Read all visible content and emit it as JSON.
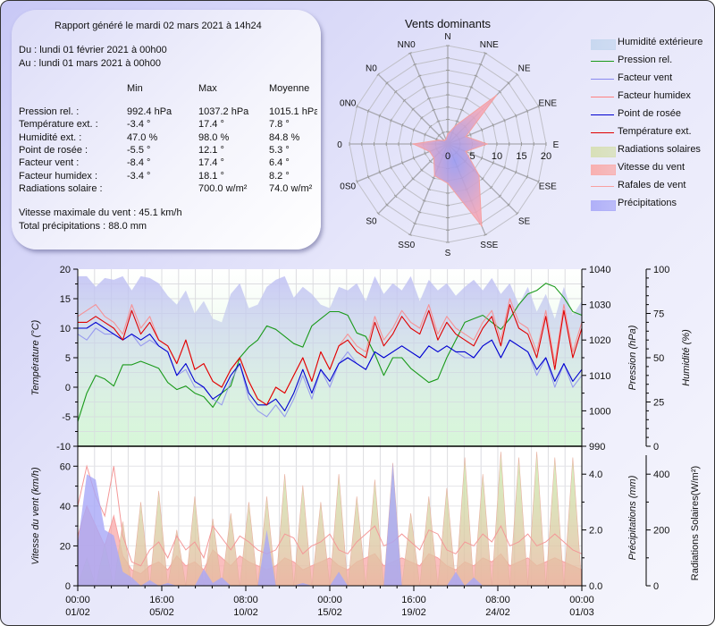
{
  "summary": {
    "title": "Rapport généré le mardi 02 mars 2021 à 14h24",
    "from": "Du : lundi 01 février 2021 à 00h00",
    "to": "Au : lundi 01 mars 2021 à 00h00",
    "columns": [
      "Min",
      "Max",
      "Moyenne"
    ],
    "rows": [
      {
        "label": "Pression rel. :",
        "min": "992.4 hPa",
        "max": "1037.2 hPa",
        "avg": "1015.1 hPa"
      },
      {
        "label": "Température ext. :",
        "min": "-3.4 °",
        "max": "17.4 °",
        "avg": "7.8 °"
      },
      {
        "label": "Humidité ext. :",
        "min": "47.0 %",
        "max": "98.0 %",
        "avg": "84.8 %"
      },
      {
        "label": "Point de rosée :",
        "min": "-5.5 °",
        "max": "12.1 °",
        "avg": "5.3 °"
      },
      {
        "label": "Facteur vent :",
        "min": "-8.4 °",
        "max": "17.4 °",
        "avg": "6.4 °"
      },
      {
        "label": "Facteur humidex :",
        "min": "-3.4 °",
        "max": "18.1 °",
        "avg": "8.2 °"
      },
      {
        "label": "Radiations solaire :",
        "min": "",
        "max": "700.0 w/m²",
        "avg": "74.0 w/m²"
      }
    ],
    "max_wind": "Vitesse maximale du vent : 45.1 km/h",
    "total_rain": "Total précipitations : 88.0 mm"
  },
  "legend": [
    {
      "label": "Humidité extérieure",
      "kind": "area",
      "color": "#c8d8f0"
    },
    {
      "label": "Pression rel.",
      "kind": "line",
      "color": "#1a9a1a"
    },
    {
      "label": "Facteur vent",
      "kind": "line",
      "color": "#8888f0"
    },
    {
      "label": "Facteur humidex",
      "kind": "line",
      "color": "#ff8080"
    },
    {
      "label": "Point de rosée",
      "kind": "line",
      "color": "#0000d0"
    },
    {
      "label": "Température ext.",
      "kind": "line",
      "color": "#e00000"
    },
    {
      "label": "Radiations solaires",
      "kind": "area",
      "color": "#d8e0b8"
    },
    {
      "label": "Vitesse du vent",
      "kind": "area",
      "color": "#f8b0b0"
    },
    {
      "label": "Rafales de vent",
      "kind": "line",
      "color": "#f8a0a0"
    },
    {
      "label": "Précipitations",
      "kind": "area",
      "color": "#b0b0f8"
    }
  ],
  "chart_data": [
    {
      "type": "radar",
      "title": "Vents dominants",
      "directions": [
        "N",
        "NNE",
        "NE",
        "ENE",
        "E",
        "ESE",
        "SE",
        "SSE",
        "S",
        "SS0",
        "S0",
        "0S0",
        "0",
        "0N0",
        "N0",
        "NN0"
      ],
      "values": [
        2,
        4,
        14,
        4,
        8,
        4,
        9,
        18,
        8,
        7,
        4,
        4,
        7,
        2,
        1,
        1
      ],
      "rlim": [
        0,
        20
      ],
      "rticks": [
        "0",
        "5",
        "10",
        "15",
        "20"
      ]
    },
    {
      "type": "line",
      "title": "",
      "xlabel": "",
      "xticks": [
        [
          "00:00",
          "01/02"
        ],
        [
          "16:00",
          "05/02"
        ],
        [
          "08:00",
          "10/02"
        ],
        [
          "00:00",
          "15/02"
        ],
        [
          "16:00",
          "19/02"
        ],
        [
          "08:00",
          "24/02"
        ],
        [
          "00:00",
          "01/03"
        ]
      ],
      "x_hours": [
        0,
        12,
        24,
        36,
        48,
        60,
        72,
        84,
        96,
        108,
        120,
        132,
        144,
        156,
        168,
        180,
        192,
        204,
        216,
        228,
        240,
        252,
        264,
        276,
        288,
        300,
        312,
        324,
        336,
        348,
        360,
        372,
        384,
        396,
        408,
        420,
        432,
        444,
        456,
        468,
        480,
        492,
        504,
        516,
        528,
        540,
        552,
        564,
        576,
        588,
        600,
        612,
        624,
        636,
        648,
        660,
        672
      ],
      "axes": {
        "temperature": {
          "label": "Température (°C)",
          "lim": [
            -10,
            20
          ],
          "ticks": [
            "20",
            "15",
            "10",
            "5",
            "0",
            "-5",
            "-10"
          ]
        },
        "pressure": {
          "label": "Pression (hPa)",
          "lim": [
            990,
            1040
          ],
          "ticks": [
            "1040",
            "1030",
            "1020",
            "1010",
            "1000",
            "990"
          ]
        },
        "humidity": {
          "label": "Humidité (%)",
          "lim": [
            0,
            100
          ],
          "ticks": [
            "100",
            "75",
            "50",
            "25",
            "0"
          ]
        }
      },
      "series": [
        {
          "name": "Température ext.",
          "axis": "temperature",
          "values": [
            11,
            11,
            12,
            11,
            10,
            8,
            13,
            9,
            11,
            8,
            7,
            4,
            8,
            3,
            4,
            1,
            0,
            3,
            5,
            1,
            -2,
            -3,
            0,
            -1,
            2,
            5,
            1,
            6,
            3,
            7,
            8,
            6,
            5,
            11,
            7,
            9,
            12,
            10,
            9,
            13,
            8,
            11,
            9,
            8,
            7,
            10,
            12,
            7,
            14,
            10,
            9,
            5,
            12,
            3,
            13,
            5,
            10
          ]
        },
        {
          "name": "Point de rosée",
          "axis": "temperature",
          "values": [
            10,
            10,
            11,
            10,
            9,
            8,
            9,
            8,
            9,
            7,
            6,
            2,
            4,
            1,
            0,
            -2,
            -1,
            2,
            4,
            -1,
            -3,
            -3,
            -2,
            -4,
            -1,
            3,
            -1,
            3,
            1,
            4,
            5,
            4,
            3,
            6,
            5,
            6,
            7,
            6,
            5,
            7,
            6,
            7,
            6,
            6,
            5,
            7,
            8,
            5,
            8,
            7,
            6,
            3,
            5,
            1,
            4,
            1,
            3
          ]
        },
        {
          "name": "Facteur vent",
          "axis": "temperature",
          "values": [
            9,
            8,
            10,
            9,
            9,
            8,
            9,
            7,
            8,
            7,
            6,
            2,
            3,
            0,
            0,
            -2,
            -3,
            1,
            4,
            -2,
            -4,
            -5,
            -3,
            -5,
            -2,
            2,
            -2,
            3,
            0,
            4,
            6,
            4,
            3,
            6,
            5,
            6,
            7,
            6,
            5,
            7,
            6,
            7,
            6,
            5,
            5,
            7,
            8,
            5,
            8,
            7,
            6,
            2,
            5,
            0,
            4,
            0,
            2
          ]
        },
        {
          "name": "Facteur humidex",
          "axis": "temperature",
          "values": [
            12,
            13,
            14,
            12,
            11,
            9,
            14,
            10,
            12,
            8,
            7,
            4,
            8,
            3,
            4,
            1,
            0,
            3,
            5,
            1,
            -2,
            -3,
            0,
            -1,
            2,
            5,
            1,
            6,
            3,
            7,
            9,
            7,
            6,
            12,
            8,
            10,
            13,
            11,
            10,
            14,
            9,
            12,
            10,
            9,
            8,
            11,
            13,
            8,
            15,
            11,
            10,
            6,
            13,
            4,
            14,
            6,
            11
          ]
        },
        {
          "name": "Pression rel.",
          "axis": "pressure",
          "values": [
            997,
            1005,
            1010,
            1009,
            1007,
            1013,
            1013,
            1014,
            1013,
            1012,
            1008,
            1006,
            1007,
            1005,
            1004,
            1001,
            1005,
            1007,
            1015,
            1018,
            1020,
            1024,
            1023,
            1021,
            1019,
            1018,
            1024,
            1026,
            1028,
            1028,
            1027,
            1022,
            1021,
            1016,
            1010,
            1015,
            1015,
            1012,
            1010,
            1008,
            1009,
            1015,
            1020,
            1025,
            1026,
            1027,
            1025,
            1023,
            1026,
            1030,
            1033,
            1034,
            1036,
            1035,
            1032,
            1028,
            1027
          ]
        },
        {
          "name": "Humidité extérieure",
          "axis": "humidity",
          "values": [
            96,
            96,
            90,
            95,
            94,
            96,
            88,
            96,
            95,
            92,
            85,
            80,
            88,
            75,
            82,
            72,
            70,
            86,
            92,
            78,
            80,
            90,
            94,
            96,
            84,
            90,
            86,
            80,
            78,
            90,
            88,
            92,
            82,
            96,
            86,
            92,
            88,
            96,
            82,
            94,
            88,
            92,
            85,
            90,
            94,
            88,
            95,
            86,
            92,
            80,
            90,
            76,
            86,
            72,
            90,
            74,
            82
          ]
        }
      ]
    },
    {
      "type": "area",
      "title": "",
      "xticks": [
        [
          "00:00",
          "01/02"
        ],
        [
          "16:00",
          "05/02"
        ],
        [
          "08:00",
          "10/02"
        ],
        [
          "00:00",
          "15/02"
        ],
        [
          "16:00",
          "19/02"
        ],
        [
          "08:00",
          "24/02"
        ],
        [
          "00:00",
          "01/03"
        ]
      ],
      "x_hours": [
        0,
        12,
        24,
        36,
        48,
        60,
        72,
        84,
        96,
        108,
        120,
        132,
        144,
        156,
        168,
        180,
        192,
        204,
        216,
        228,
        240,
        252,
        264,
        276,
        288,
        300,
        312,
        324,
        336,
        348,
        360,
        372,
        384,
        396,
        408,
        420,
        432,
        444,
        456,
        468,
        480,
        492,
        504,
        516,
        528,
        540,
        552,
        564,
        576,
        588,
        600,
        612,
        624,
        636,
        648,
        660,
        672
      ],
      "axes": {
        "wind": {
          "label": "Vitesse du vent (km/h)",
          "lim": [
            0,
            70
          ],
          "ticks": [
            "60",
            "40",
            "20",
            "0"
          ]
        },
        "rain": {
          "label": "Précipitations (mm)",
          "lim": [
            0,
            5.0
          ],
          "ticks": [
            "4.0",
            "2.0",
            "0.0"
          ]
        },
        "solar": {
          "label": "Radiations Solaires(W/m²)",
          "lim": [
            0,
            500
          ],
          "ticks": [
            "400",
            "200",
            "0"
          ]
        }
      },
      "series": [
        {
          "name": "Vitesse du vent",
          "axis": "wind",
          "values": [
            25,
            40,
            30,
            20,
            35,
            15,
            8,
            6,
            10,
            12,
            8,
            15,
            10,
            12,
            8,
            18,
            14,
            10,
            15,
            12,
            10,
            8,
            10,
            14,
            12,
            8,
            10,
            12,
            14,
            10,
            8,
            12,
            14,
            16,
            10,
            12,
            14,
            12,
            10,
            16,
            14,
            10,
            8,
            12,
            10,
            14,
            12,
            16,
            10,
            12,
            14,
            10,
            12,
            14,
            12,
            10,
            8
          ]
        },
        {
          "name": "Rafales de vent",
          "axis": "wind",
          "values": [
            40,
            60,
            45,
            35,
            60,
            25,
            12,
            10,
            18,
            22,
            14,
            25,
            18,
            22,
            14,
            30,
            24,
            18,
            25,
            22,
            18,
            16,
            18,
            26,
            24,
            16,
            20,
            22,
            26,
            18,
            16,
            22,
            26,
            30,
            20,
            22,
            26,
            22,
            18,
            28,
            26,
            18,
            16,
            22,
            20,
            26,
            22,
            30,
            20,
            22,
            26,
            20,
            22,
            26,
            22,
            18,
            16
          ]
        },
        {
          "name": "Précipitations",
          "axis": "rain",
          "values": [
            1.5,
            4.0,
            3.8,
            2.0,
            1.8,
            0.5,
            0.3,
            0,
            0.2,
            0,
            0.1,
            0,
            0,
            0,
            0.6,
            0.1,
            0.3,
            0,
            0,
            0,
            0,
            2.0,
            0,
            0,
            0,
            0.1,
            0,
            0,
            0,
            0.5,
            0,
            0,
            0,
            0,
            0,
            4.4,
            0,
            0,
            0,
            0,
            0,
            0,
            0.5,
            0,
            0.3,
            0,
            0,
            0,
            0,
            0,
            0,
            0,
            0,
            0,
            0,
            0,
            0
          ]
        },
        {
          "name": "Radiations solaires",
          "axis": "solar",
          "values": [
            0,
            100,
            0,
            150,
            0,
            230,
            0,
            300,
            0,
            340,
            0,
            200,
            0,
            320,
            0,
            240,
            0,
            260,
            0,
            300,
            0,
            320,
            0,
            400,
            0,
            360,
            0,
            300,
            0,
            400,
            0,
            320,
            0,
            380,
            0,
            440,
            0,
            260,
            0,
            320,
            0,
            350,
            0,
            460,
            0,
            400,
            0,
            480,
            0,
            460,
            0,
            480,
            0,
            460,
            0,
            460,
            0
          ]
        }
      ]
    }
  ]
}
